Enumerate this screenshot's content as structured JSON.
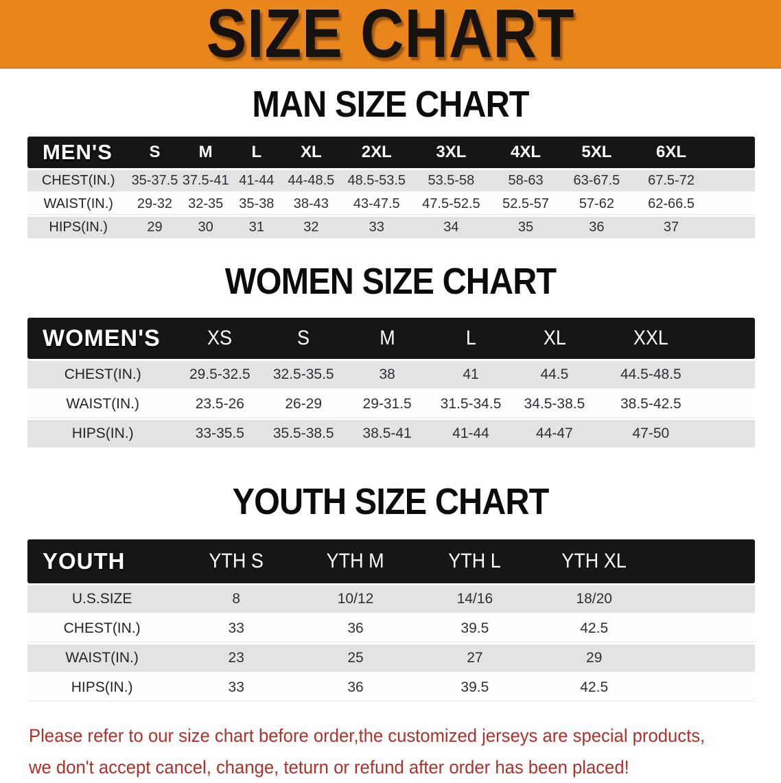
{
  "banner": {
    "title": "SIZE CHART",
    "bg_color": "#E8861C"
  },
  "sections": [
    {
      "heading": "MAN SIZE CHART",
      "label": "MEN'S",
      "columns": [
        "S",
        "M",
        "L",
        "XL",
        "2XL",
        "3XL",
        "4XL",
        "5XL",
        "6XL"
      ],
      "rows": [
        {
          "label": "CHEST(IN.)",
          "values": [
            "35-37.5",
            "37.5-41",
            "41-44",
            "44-48.5",
            "48.5-53.5",
            "53.5-58",
            "58-63",
            "63-67.5",
            "67.5-72"
          ]
        },
        {
          "label": "WAIST(IN.)",
          "values": [
            "29-32",
            "32-35",
            "35-38",
            "38-43",
            "43-47.5",
            "47.5-52.5",
            "52.5-57",
            "57-62",
            "62-66.5"
          ]
        },
        {
          "label": "HIPS(IN.)",
          "values": [
            "29",
            "30",
            "31",
            "32",
            "33",
            "34",
            "35",
            "36",
            "37"
          ]
        }
      ]
    },
    {
      "heading": "WOMEN SIZE CHART",
      "label": "WOMEN'S",
      "columns": [
        "XS",
        "S",
        "M",
        "L",
        "XL",
        "XXL"
      ],
      "rows": [
        {
          "label": "CHEST(IN.)",
          "values": [
            "29.5-32.5",
            "32.5-35.5",
            "38",
            "41",
            "44.5",
            "44.5-48.5"
          ]
        },
        {
          "label": "WAIST(IN.)",
          "values": [
            "23.5-26",
            "26-29",
            "29-31.5",
            "31.5-34.5",
            "34.5-38.5",
            "38.5-42.5"
          ]
        },
        {
          "label": "HIPS(IN.)",
          "values": [
            "33-35.5",
            "35.5-38.5",
            "38.5-41",
            "41-44",
            "44-47",
            "47-50"
          ]
        }
      ]
    },
    {
      "heading": "YOUTH SIZE CHART",
      "label": "YOUTH",
      "columns": [
        "YTH S",
        "YTH M",
        "YTH L",
        "YTH XL"
      ],
      "rows": [
        {
          "label": "U.S.SIZE",
          "values": [
            "8",
            "10/12",
            "14/16",
            "18/20"
          ]
        },
        {
          "label": "CHEST(IN.)",
          "values": [
            "33",
            "36",
            "39.5",
            "42.5"
          ]
        },
        {
          "label": "WAIST(IN.)",
          "values": [
            "23",
            "25",
            "27",
            "29"
          ]
        },
        {
          "label": "HIPS(IN.)",
          "values": [
            "33",
            "36",
            "39.5",
            "42.5"
          ]
        }
      ]
    }
  ],
  "footer": {
    "line1": "Please refer to our size chart before order,the customized jerseys are special products,",
    "line2": "we don't accept cancel, change, teturn or refund after order has been placed!",
    "text_color": "#B0312A"
  }
}
